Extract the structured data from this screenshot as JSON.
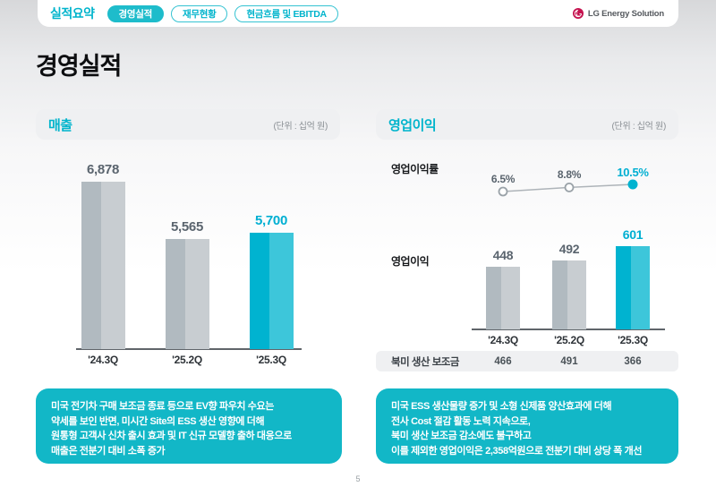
{
  "header": {
    "section_label": "실적요약",
    "tabs": [
      {
        "label": "경영실적",
        "active": true
      },
      {
        "label": "재무현황",
        "active": false
      },
      {
        "label": "현금흐름 및 EBITDA",
        "active": false
      }
    ],
    "logo_text": "LG Energy Solution"
  },
  "page": {
    "title": "경영실적",
    "page_number": "5"
  },
  "colors": {
    "accent_teal": "#00b4cc",
    "bar_teal_dark": "#00b3d0",
    "bar_teal_light": "#3dc6da",
    "bar_gray_dark": "#b1bac0",
    "bar_gray_light": "#c8cdd1",
    "note_box_bg": "#12b7c7",
    "logo_red": "#c5134f"
  },
  "revenue_panel": {
    "title": "매출",
    "unit": "(단위 : 십억 원)",
    "note_lines": [
      "미국 전기차 구매 보조금 종료 등으로 EV향 파우치 수요는",
      "약세를 보인 반면, 미시간 Site의 ESS 생산 영향에 더해",
      "원통형 고객사 신차 출시 효과 및 IT 신규 모델향 출하 대응으로",
      "매출은 전분기 대비 소폭 증가"
    ]
  },
  "profit_panel": {
    "title": "영업이익",
    "unit": "(단위 : 십억 원)",
    "margin_label": "영업이익률",
    "profit_label": "영업이익",
    "note_lines": [
      "미국 ESS 생산물량 증가 및 소형 신제품 양산효과에 더해",
      "전사 Cost 절감 활동 노력 지속으로,",
      "북미 생산 보조금 감소에도 불구하고",
      "이를 제외한 영업이익은 2,358억원으로 전분기 대비 상당 폭 개선"
    ]
  },
  "chart_data": [
    {
      "type": "bar",
      "title": "매출",
      "ylabel": "십억 원",
      "categories": [
        "'24.3Q",
        "'25.2Q",
        "'25.3Q"
      ],
      "values": [
        6878,
        5565,
        5700
      ],
      "value_labels": [
        "6,878",
        "5,565",
        "5,700"
      ],
      "highlight_index": 2,
      "legend_position": "none",
      "grid": false
    },
    {
      "type": "line",
      "title": "영업이익률",
      "categories": [
        "'24.3Q",
        "'25.2Q",
        "'25.3Q"
      ],
      "values": [
        6.5,
        8.8,
        10.5
      ],
      "value_labels": [
        "6.5%",
        "8.8%",
        "10.5%"
      ],
      "highlight_index": 2,
      "legend_position": "none",
      "grid": false
    },
    {
      "type": "bar",
      "title": "영업이익",
      "ylabel": "십억 원",
      "categories": [
        "'24.3Q",
        "'25.2Q",
        "'25.3Q"
      ],
      "values": [
        448,
        492,
        601
      ],
      "value_labels": [
        "448",
        "492",
        "601"
      ],
      "highlight_index": 2,
      "legend_position": "none",
      "grid": false,
      "subsidy_row": {
        "label": "북미 생산 보조금",
        "values": [
          466,
          491,
          366
        ],
        "value_labels": [
          "466",
          "491",
          "366"
        ]
      }
    }
  ]
}
